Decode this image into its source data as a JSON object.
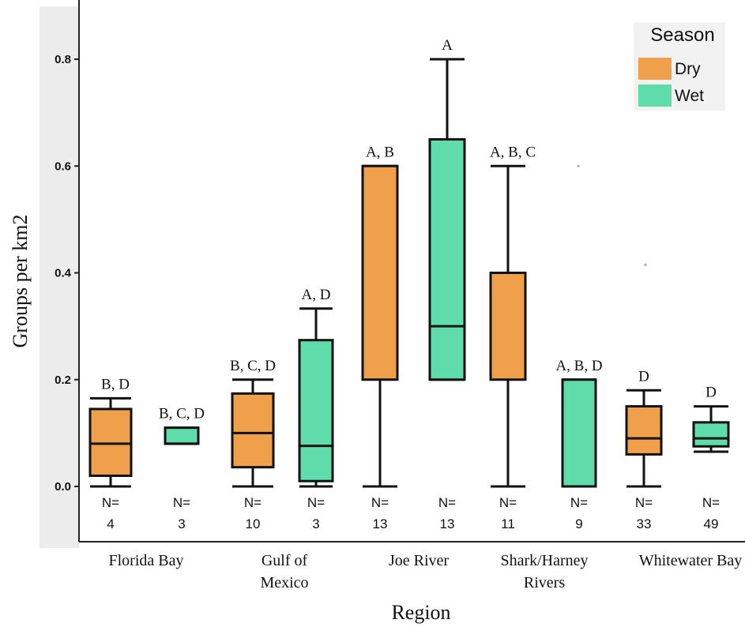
{
  "chart_data": {
    "type": "box",
    "xlabel": "Region",
    "ylabel": "Groups per km2",
    "ylim": [
      -0.1,
      0.91
    ],
    "yticks": [
      "0.0",
      "0.2",
      "0.4",
      "0.6",
      "0.8"
    ],
    "categories": [
      "Florida Bay",
      "Gulf of Mexico",
      "Joe River",
      "Shark/Harney Rivers",
      "Whitewater Bay"
    ],
    "category_labels": [
      [
        "Florida Bay"
      ],
      [
        "Gulf of",
        "Mexico"
      ],
      [
        "Joe River"
      ],
      [
        "Shark/Harney",
        "Rivers"
      ],
      [
        "Whitewater Bay"
      ]
    ],
    "legend": {
      "title": "Season",
      "position": "top-right",
      "entries": [
        {
          "label": "Dry",
          "color": "#F0A04B"
        },
        {
          "label": "Wet",
          "color": "#5EDDAA"
        }
      ]
    },
    "boxes": [
      {
        "category": "Florida Bay",
        "season": "Dry",
        "min": 0.0,
        "q1": 0.02,
        "median": 0.08,
        "q3": 0.145,
        "max": 0.165,
        "sig": "B, D",
        "n_label": "N=",
        "n_value": "4"
      },
      {
        "category": "Florida Bay",
        "season": "Wet",
        "min": 0.08,
        "q1": 0.08,
        "median": 0.08,
        "q3": 0.11,
        "max": 0.11,
        "sig": "B, C, D",
        "n_label": "N=",
        "n_value": "3"
      },
      {
        "category": "Gulf of Mexico",
        "season": "Dry",
        "min": 0.0,
        "q1": 0.036,
        "median": 0.1,
        "q3": 0.174,
        "max": 0.2,
        "sig": "B, C, D",
        "n_label": "N=",
        "n_value": "10"
      },
      {
        "category": "Gulf of Mexico",
        "season": "Wet",
        "min": 0.0,
        "q1": 0.01,
        "median": 0.076,
        "q3": 0.274,
        "max": 0.333,
        "sig": "A, D",
        "n_label": "N=",
        "n_value": "3"
      },
      {
        "category": "Joe River",
        "season": "Dry",
        "min": 0.0,
        "q1": 0.2,
        "median": null,
        "q3": 0.6,
        "max": 0.6,
        "sig": "A, B",
        "n_label": "N=",
        "n_value": "13"
      },
      {
        "category": "Joe River",
        "season": "Wet",
        "min": 0.2,
        "q1": 0.2,
        "median": 0.3,
        "q3": 0.65,
        "max": 0.8,
        "sig": "A",
        "n_label": "N=",
        "n_value": "13"
      },
      {
        "category": "Shark/Harney Rivers",
        "season": "Dry",
        "min": 0.0,
        "q1": 0.2,
        "median": null,
        "q3": 0.4,
        "max": 0.6,
        "sig": "A, B, C",
        "n_label": "N=",
        "n_value": "11"
      },
      {
        "category": "Shark/Harney Rivers",
        "season": "Wet",
        "min": 0.0,
        "q1": 0.0,
        "median": null,
        "q3": 0.2,
        "max": 0.2,
        "sig": "A, B, D",
        "n_label": "N=",
        "n_value": "9"
      },
      {
        "category": "Whitewater Bay",
        "season": "Dry",
        "min": 0.0,
        "q1": 0.06,
        "median": 0.09,
        "q3": 0.15,
        "max": 0.18,
        "sig": "D",
        "n_label": "N=",
        "n_value": "33"
      },
      {
        "category": "Whitewater Bay",
        "season": "Wet",
        "min": 0.065,
        "q1": 0.075,
        "median": 0.09,
        "q3": 0.12,
        "max": 0.15,
        "sig": "D",
        "n_label": "N=",
        "n_value": "49"
      }
    ],
    "outliers": [
      {
        "category": "Shark/Harney Rivers",
        "season": "Wet",
        "value": 0.6
      },
      {
        "category": "Shark/Harney Rivers",
        "season": "Wet",
        "value": 0.415
      }
    ]
  }
}
